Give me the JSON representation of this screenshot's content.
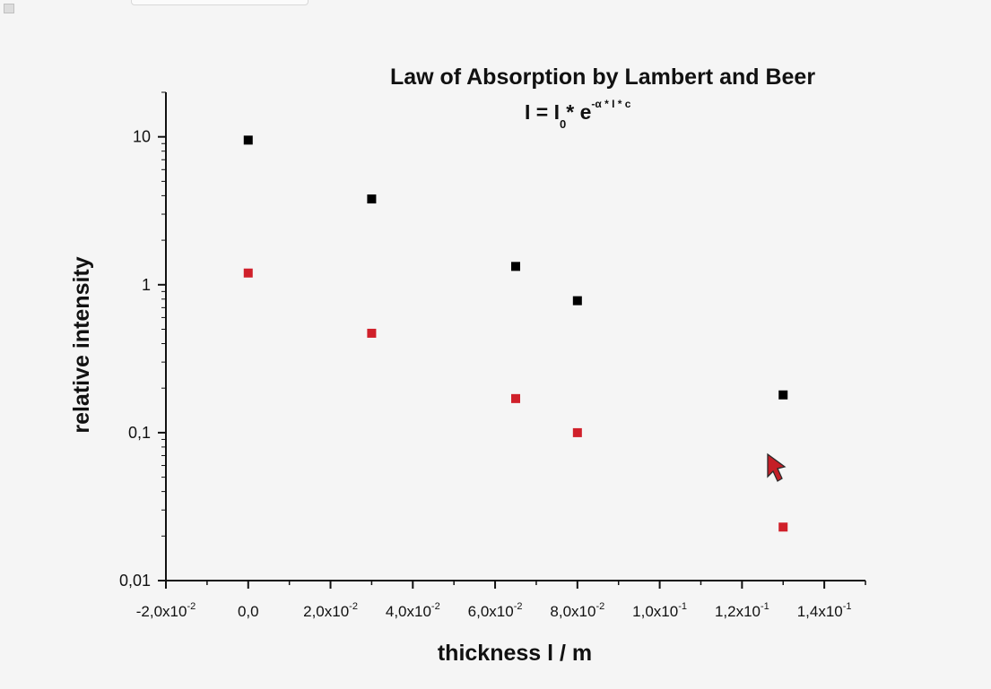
{
  "chart_data": {
    "type": "scatter",
    "title": "Law of Absorption by Lambert and Beer",
    "subtitle": {
      "parts": [
        "I = I",
        "0",
        "* e",
        "-α * I * c"
      ]
    },
    "xlabel": "thickness l / m",
    "ylabel": "relative intensity",
    "xlim": [
      -0.02,
      0.15
    ],
    "ylim": [
      0.01,
      20
    ],
    "yscale": "log",
    "grid": false,
    "legend": "none",
    "x_ticks": [
      {
        "value": -0.02,
        "label": "-2,0x10",
        "exp": "-2"
      },
      {
        "value": 0.0,
        "label": "0,0",
        "exp": ""
      },
      {
        "value": 0.02,
        "label": "2,0x10",
        "exp": "-2"
      },
      {
        "value": 0.04,
        "label": "4,0x10",
        "exp": "-2"
      },
      {
        "value": 0.06,
        "label": "6,0x10",
        "exp": "-2"
      },
      {
        "value": 0.08,
        "label": "8,0x10",
        "exp": "-2"
      },
      {
        "value": 0.1,
        "label": "1,0x10",
        "exp": "-1"
      },
      {
        "value": 0.12,
        "label": "1,2x10",
        "exp": "-1"
      },
      {
        "value": 0.14,
        "label": "1,4x10",
        "exp": "-1"
      }
    ],
    "y_ticks": [
      {
        "value": 10,
        "label": "10"
      },
      {
        "value": 1,
        "label": "1"
      },
      {
        "value": 0.1,
        "label": "0,1"
      },
      {
        "value": 0.01,
        "label": "0,01"
      }
    ],
    "series": [
      {
        "color": "#000000",
        "x": [
          0.0,
          0.03,
          0.065,
          0.08,
          0.13
        ],
        "y": [
          9.5,
          3.8,
          1.33,
          0.78,
          0.18
        ]
      },
      {
        "color": "#d0202a",
        "x": [
          0.0,
          0.03,
          0.065,
          0.08,
          0.13
        ],
        "y": [
          1.2,
          0.47,
          0.17,
          0.1,
          0.023
        ]
      }
    ]
  }
}
